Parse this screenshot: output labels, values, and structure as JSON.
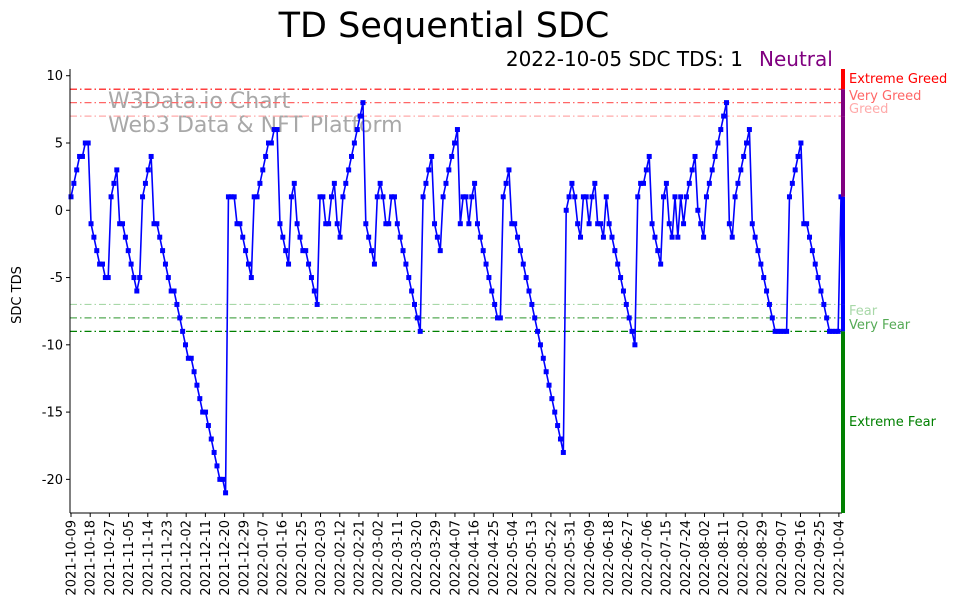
{
  "chart_data": {
    "type": "line",
    "title": "TD Sequential SDC",
    "subtitle_date": "2022-10-05",
    "subtitle_text": "SDC TDS: 1",
    "sentiment": "Neutral",
    "ylabel": "SDC TDS",
    "xlabel": "",
    "ylim": [
      -22.5,
      10.5
    ],
    "yticks": [
      10,
      5,
      0,
      -5,
      -10,
      -15,
      -20
    ],
    "xlim": [
      0,
      361
    ],
    "xticks": [
      {
        "label": "2021-10-09",
        "day": 0
      },
      {
        "label": "2021-10-18",
        "day": 9
      },
      {
        "label": "2021-10-27",
        "day": 18
      },
      {
        "label": "2021-11-05",
        "day": 27
      },
      {
        "label": "2021-11-14",
        "day": 36
      },
      {
        "label": "2021-11-23",
        "day": 45
      },
      {
        "label": "2021-12-02",
        "day": 54
      },
      {
        "label": "2021-12-11",
        "day": 63
      },
      {
        "label": "2021-12-20",
        "day": 72
      },
      {
        "label": "2021-12-29",
        "day": 81
      },
      {
        "label": "2022-01-07",
        "day": 90
      },
      {
        "label": "2022-01-16",
        "day": 99
      },
      {
        "label": "2022-01-25",
        "day": 108
      },
      {
        "label": "2022-02-03",
        "day": 117
      },
      {
        "label": "2022-02-12",
        "day": 126
      },
      {
        "label": "2022-02-21",
        "day": 135
      },
      {
        "label": "2022-03-02",
        "day": 144
      },
      {
        "label": "2022-03-11",
        "day": 153
      },
      {
        "label": "2022-03-20",
        "day": 162
      },
      {
        "label": "2022-03-29",
        "day": 171
      },
      {
        "label": "2022-04-07",
        "day": 180
      },
      {
        "label": "2022-04-16",
        "day": 189
      },
      {
        "label": "2022-04-25",
        "day": 198
      },
      {
        "label": "2022-05-04",
        "day": 207
      },
      {
        "label": "2022-05-13",
        "day": 216
      },
      {
        "label": "2022-05-22",
        "day": 225
      },
      {
        "label": "2022-05-31",
        "day": 234
      },
      {
        "label": "2022-06-09",
        "day": 243
      },
      {
        "label": "2022-06-18",
        "day": 252
      },
      {
        "label": "2022-06-27",
        "day": 261
      },
      {
        "label": "2022-07-06",
        "day": 270
      },
      {
        "label": "2022-07-15",
        "day": 279
      },
      {
        "label": "2022-07-24",
        "day": 288
      },
      {
        "label": "2022-08-02",
        "day": 297
      },
      {
        "label": "2022-08-11",
        "day": 306
      },
      {
        "label": "2022-08-20",
        "day": 315
      },
      {
        "label": "2022-08-29",
        "day": 324
      },
      {
        "label": "2022-09-07",
        "day": 333
      },
      {
        "label": "2022-09-16",
        "day": 342
      },
      {
        "label": "2022-09-25",
        "day": 351
      },
      {
        "label": "2022-10-04",
        "day": 360
      }
    ],
    "thresholds": [
      {
        "name": "Extreme Greed",
        "value": 9,
        "color": "#ff0000"
      },
      {
        "name": "Very Greed",
        "value": 8,
        "color": "#ff6666"
      },
      {
        "name": "Greed",
        "value": 7,
        "color": "#ffaaaa"
      },
      {
        "name": "Fear",
        "value": -7,
        "color": "#a8d8a8"
      },
      {
        "name": "Very Fear",
        "value": -8,
        "color": "#55aa55"
      },
      {
        "name": "Extreme Fear",
        "value": -9,
        "color": "#008000"
      }
    ],
    "sentiment_bar": [
      {
        "from": 10.5,
        "to": 9,
        "color": "#ff0000"
      },
      {
        "from": 9,
        "to": 7,
        "color": "#800080"
      },
      {
        "from": 7,
        "to": 1,
        "color": "#800080"
      },
      {
        "from": 1,
        "to": -7,
        "color": "#0000ff"
      },
      {
        "from": -7,
        "to": -9,
        "color": "#0000ff"
      },
      {
        "from": -9,
        "to": -22.5,
        "color": "#008000"
      }
    ],
    "watermark": [
      "W3Data.io Chart",
      "Web3 Data & NFT Platform"
    ],
    "series": [
      {
        "name": "SDC TDS",
        "color": "#0000ff",
        "values": [
          1,
          2,
          3,
          4,
          4,
          5,
          5,
          -1,
          -2,
          -3,
          -4,
          -4,
          -5,
          -5,
          1,
          2,
          3,
          -1,
          -1,
          -2,
          -3,
          -4,
          -5,
          -6,
          -5,
          1,
          2,
          3,
          4,
          -1,
          -1,
          -2,
          -3,
          -4,
          -5,
          -6,
          -6,
          -7,
          -8,
          -9,
          -10,
          -11,
          -11,
          -12,
          -13,
          -14,
          -15,
          -15,
          -16,
          -17,
          -18,
          -19,
          -20,
          -20,
          -21,
          1,
          1,
          1,
          -1,
          -1,
          -2,
          -3,
          -4,
          -5,
          1,
          1,
          2,
          3,
          4,
          5,
          5,
          6,
          6,
          -1,
          -2,
          -3,
          -4,
          1,
          2,
          -1,
          -2,
          -3,
          -3,
          -4,
          -5,
          -6,
          -7,
          1,
          1,
          -1,
          -1,
          1,
          2,
          -1,
          -2,
          1,
          2,
          3,
          4,
          5,
          6,
          7,
          8,
          -1,
          -2,
          -3,
          -4,
          1,
          2,
          1,
          -1,
          -1,
          1,
          1,
          -1,
          -2,
          -3,
          -4,
          -5,
          -6,
          -7,
          -8,
          -9,
          1,
          2,
          3,
          4,
          -1,
          -2,
          -3,
          1,
          2,
          3,
          4,
          5,
          6,
          -1,
          1,
          1,
          -1,
          1,
          2,
          -1,
          -2,
          -3,
          -4,
          -5,
          -6,
          -7,
          -8,
          -8,
          1,
          2,
          3,
          -1,
          -1,
          -2,
          -3,
          -4,
          -5,
          -6,
          -7,
          -8,
          -9,
          -10,
          -11,
          -12,
          -13,
          -14,
          -15,
          -16,
          -17,
          -18,
          0,
          1,
          2,
          1,
          -1,
          -2,
          1,
          1,
          -1,
          1,
          2,
          -1,
          -1,
          -2,
          1,
          -1,
          -2,
          -3,
          -4,
          -5,
          -6,
          -7,
          -8,
          -9,
          -10,
          1,
          2,
          2,
          3,
          4,
          -1,
          -2,
          -3,
          -4,
          1,
          2,
          -1,
          -2,
          1,
          -2,
          1,
          -1,
          1,
          2,
          3,
          4,
          0,
          -1,
          -2,
          1,
          2,
          3,
          4,
          5,
          6,
          7,
          8,
          -1,
          -2,
          1,
          2,
          3,
          4,
          5,
          6,
          -1,
          -2,
          -3,
          -4,
          -5,
          -6,
          -7,
          -8,
          -9,
          -9,
          -9,
          -9,
          -9,
          1,
          2,
          3,
          4,
          5,
          -1,
          -1,
          -2,
          -3,
          -4,
          -5,
          -6,
          -7,
          -8,
          -9,
          -9,
          -9,
          -9,
          1
        ]
      }
    ]
  }
}
